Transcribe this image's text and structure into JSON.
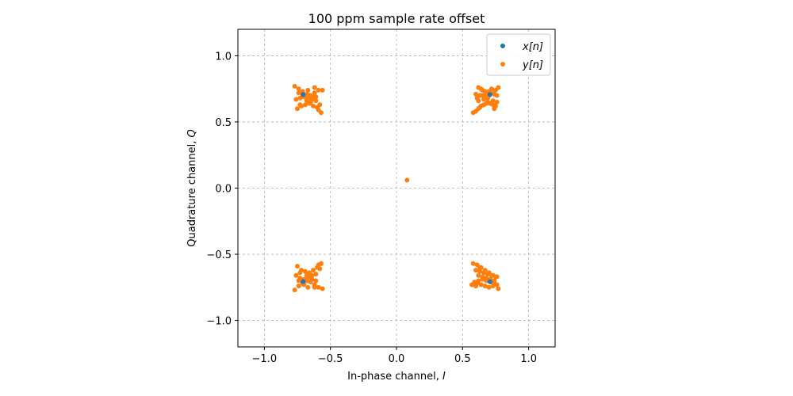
{
  "chart_data": {
    "type": "scatter",
    "title": "100 ppm sample rate offset",
    "xlabel": "In-phase channel, I",
    "ylabel": "Quadrature channel, Q",
    "xlim": [
      -1.2,
      1.2
    ],
    "ylim": [
      -1.2,
      1.2
    ],
    "xticks": [
      -1.0,
      -0.5,
      0.0,
      0.5,
      1.0
    ],
    "yticks": [
      -1.0,
      -0.5,
      0.0,
      0.5,
      1.0
    ],
    "xtick_labels": [
      "−1.0",
      "−0.5",
      "0.0",
      "0.5",
      "1.0"
    ],
    "ytick_labels": [
      "−1.0",
      "−0.5",
      "0.0",
      "0.5",
      "1.0"
    ],
    "grid": true,
    "legend_position": "top-right",
    "series": [
      {
        "name": "x[n]",
        "color": "#1f77b4",
        "x": [
          0.707,
          -0.707,
          -0.707,
          0.707
        ],
        "y": [
          0.707,
          0.707,
          -0.707,
          -0.707
        ]
      },
      {
        "name": "y[n]",
        "color": "#ff7f0e",
        "x": [
          0.62,
          0.65,
          0.68,
          0.72,
          0.75,
          0.77,
          0.6,
          0.63,
          0.67,
          0.7,
          0.74,
          0.76,
          0.62,
          0.66,
          0.69,
          0.73,
          0.76,
          0.58,
          0.6,
          0.62,
          0.64,
          0.66,
          0.68,
          0.71,
          0.73,
          0.75,
          0.64,
          0.67,
          0.7,
          0.72,
          0.63,
          0.74,
          0.61,
          0.65,
          0.69,
          -0.77,
          -0.74,
          -0.71,
          -0.68,
          -0.65,
          -0.62,
          -0.59,
          -0.76,
          -0.73,
          -0.7,
          -0.67,
          -0.64,
          -0.61,
          -0.58,
          -0.75,
          -0.72,
          -0.69,
          -0.66,
          -0.63,
          -0.6,
          -0.57,
          -0.74,
          -0.71,
          -0.68,
          -0.65,
          -0.62,
          -0.59,
          -0.73,
          -0.7,
          -0.67,
          -0.64,
          -0.61,
          -0.56,
          -0.77,
          -0.74,
          -0.71,
          -0.68,
          -0.65,
          -0.62,
          -0.59,
          -0.76,
          -0.73,
          -0.7,
          -0.67,
          -0.64,
          -0.61,
          -0.58,
          -0.75,
          -0.72,
          -0.69,
          -0.66,
          -0.63,
          -0.6,
          -0.57,
          -0.74,
          -0.71,
          -0.68,
          -0.65,
          -0.62,
          -0.59,
          -0.73,
          -0.7,
          -0.67,
          -0.64,
          -0.61,
          -0.56,
          0.58,
          0.61,
          0.64,
          0.67,
          0.7,
          0.73,
          0.76,
          0.59,
          0.62,
          0.65,
          0.68,
          0.71,
          0.74,
          0.77,
          0.6,
          0.63,
          0.66,
          0.69,
          0.72,
          0.75,
          0.61,
          0.64,
          0.67,
          0.7,
          0.73,
          0.76,
          0.62,
          0.65,
          0.68,
          0.71,
          0.74,
          0.57,
          0.6,
          0.63,
          0.08
        ],
        "y": [
          0.76,
          0.74,
          0.72,
          0.72,
          0.74,
          0.76,
          0.71,
          0.7,
          0.69,
          0.7,
          0.71,
          0.7,
          0.66,
          0.67,
          0.68,
          0.66,
          0.65,
          0.57,
          0.58,
          0.6,
          0.62,
          0.63,
          0.64,
          0.64,
          0.63,
          0.62,
          0.75,
          0.73,
          0.73,
          0.75,
          0.61,
          0.6,
          0.68,
          0.7,
          0.65,
          0.77,
          0.75,
          0.73,
          0.71,
          0.7,
          0.72,
          0.74,
          0.67,
          0.68,
          0.69,
          0.68,
          0.67,
          0.66,
          0.63,
          0.6,
          0.62,
          0.63,
          0.64,
          0.62,
          0.61,
          0.57,
          0.72,
          0.7,
          0.66,
          0.65,
          0.76,
          0.59,
          0.63,
          0.71,
          0.74,
          0.69,
          0.69,
          0.74,
          -0.77,
          -0.74,
          -0.72,
          -0.7,
          -0.71,
          -0.73,
          -0.75,
          -0.66,
          -0.68,
          -0.69,
          -0.67,
          -0.66,
          -0.65,
          -0.61,
          -0.59,
          -0.62,
          -0.63,
          -0.64,
          -0.62,
          -0.6,
          -0.57,
          -0.7,
          -0.72,
          -0.66,
          -0.68,
          -0.75,
          -0.58,
          -0.64,
          -0.73,
          -0.75,
          -0.69,
          -0.7,
          -0.76,
          -0.57,
          -0.58,
          -0.6,
          -0.62,
          -0.64,
          -0.66,
          -0.67,
          -0.71,
          -0.7,
          -0.69,
          -0.7,
          -0.71,
          -0.72,
          -0.76,
          -0.62,
          -0.63,
          -0.64,
          -0.65,
          -0.66,
          -0.67,
          -0.72,
          -0.73,
          -0.74,
          -0.75,
          -0.74,
          -0.73,
          -0.66,
          -0.67,
          -0.68,
          -0.69,
          -0.7,
          -0.73,
          -0.74,
          -0.6,
          0.06
        ]
      }
    ]
  }
}
